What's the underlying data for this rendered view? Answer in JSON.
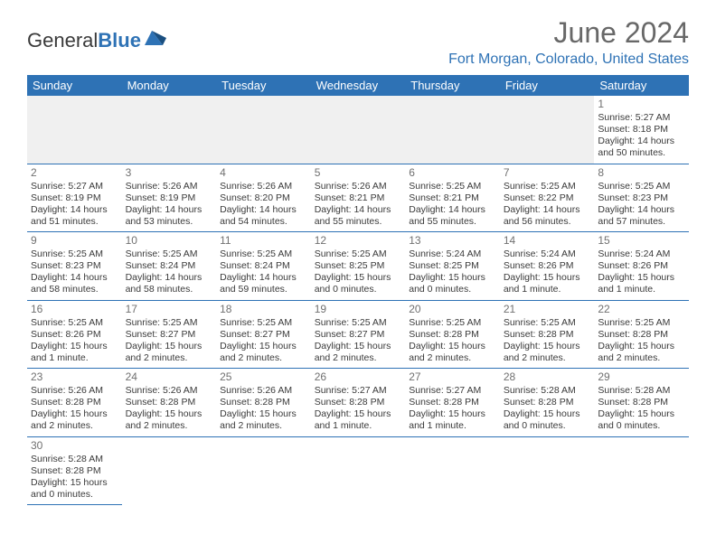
{
  "logo": {
    "text1": "General",
    "text2": "Blue"
  },
  "title": "June 2024",
  "location": "Fort Morgan, Colorado, United States",
  "colors": {
    "accent": "#2e72b5",
    "header_text": "#686868",
    "body_text": "#3a3a3a",
    "bg_empty": "#f0f0f0"
  },
  "day_headers": [
    "Sunday",
    "Monday",
    "Tuesday",
    "Wednesday",
    "Thursday",
    "Friday",
    "Saturday"
  ],
  "weeks": [
    [
      null,
      null,
      null,
      null,
      null,
      null,
      {
        "n": "1",
        "sr": "Sunrise: 5:27 AM",
        "ss": "Sunset: 8:18 PM",
        "dl1": "Daylight: 14 hours",
        "dl2": "and 50 minutes."
      }
    ],
    [
      {
        "n": "2",
        "sr": "Sunrise: 5:27 AM",
        "ss": "Sunset: 8:19 PM",
        "dl1": "Daylight: 14 hours",
        "dl2": "and 51 minutes."
      },
      {
        "n": "3",
        "sr": "Sunrise: 5:26 AM",
        "ss": "Sunset: 8:19 PM",
        "dl1": "Daylight: 14 hours",
        "dl2": "and 53 minutes."
      },
      {
        "n": "4",
        "sr": "Sunrise: 5:26 AM",
        "ss": "Sunset: 8:20 PM",
        "dl1": "Daylight: 14 hours",
        "dl2": "and 54 minutes."
      },
      {
        "n": "5",
        "sr": "Sunrise: 5:26 AM",
        "ss": "Sunset: 8:21 PM",
        "dl1": "Daylight: 14 hours",
        "dl2": "and 55 minutes."
      },
      {
        "n": "6",
        "sr": "Sunrise: 5:25 AM",
        "ss": "Sunset: 8:21 PM",
        "dl1": "Daylight: 14 hours",
        "dl2": "and 55 minutes."
      },
      {
        "n": "7",
        "sr": "Sunrise: 5:25 AM",
        "ss": "Sunset: 8:22 PM",
        "dl1": "Daylight: 14 hours",
        "dl2": "and 56 minutes."
      },
      {
        "n": "8",
        "sr": "Sunrise: 5:25 AM",
        "ss": "Sunset: 8:23 PM",
        "dl1": "Daylight: 14 hours",
        "dl2": "and 57 minutes."
      }
    ],
    [
      {
        "n": "9",
        "sr": "Sunrise: 5:25 AM",
        "ss": "Sunset: 8:23 PM",
        "dl1": "Daylight: 14 hours",
        "dl2": "and 58 minutes."
      },
      {
        "n": "10",
        "sr": "Sunrise: 5:25 AM",
        "ss": "Sunset: 8:24 PM",
        "dl1": "Daylight: 14 hours",
        "dl2": "and 58 minutes."
      },
      {
        "n": "11",
        "sr": "Sunrise: 5:25 AM",
        "ss": "Sunset: 8:24 PM",
        "dl1": "Daylight: 14 hours",
        "dl2": "and 59 minutes."
      },
      {
        "n": "12",
        "sr": "Sunrise: 5:25 AM",
        "ss": "Sunset: 8:25 PM",
        "dl1": "Daylight: 15 hours",
        "dl2": "and 0 minutes."
      },
      {
        "n": "13",
        "sr": "Sunrise: 5:24 AM",
        "ss": "Sunset: 8:25 PM",
        "dl1": "Daylight: 15 hours",
        "dl2": "and 0 minutes."
      },
      {
        "n": "14",
        "sr": "Sunrise: 5:24 AM",
        "ss": "Sunset: 8:26 PM",
        "dl1": "Daylight: 15 hours",
        "dl2": "and 1 minute."
      },
      {
        "n": "15",
        "sr": "Sunrise: 5:24 AM",
        "ss": "Sunset: 8:26 PM",
        "dl1": "Daylight: 15 hours",
        "dl2": "and 1 minute."
      }
    ],
    [
      {
        "n": "16",
        "sr": "Sunrise: 5:25 AM",
        "ss": "Sunset: 8:26 PM",
        "dl1": "Daylight: 15 hours",
        "dl2": "and 1 minute."
      },
      {
        "n": "17",
        "sr": "Sunrise: 5:25 AM",
        "ss": "Sunset: 8:27 PM",
        "dl1": "Daylight: 15 hours",
        "dl2": "and 2 minutes."
      },
      {
        "n": "18",
        "sr": "Sunrise: 5:25 AM",
        "ss": "Sunset: 8:27 PM",
        "dl1": "Daylight: 15 hours",
        "dl2": "and 2 minutes."
      },
      {
        "n": "19",
        "sr": "Sunrise: 5:25 AM",
        "ss": "Sunset: 8:27 PM",
        "dl1": "Daylight: 15 hours",
        "dl2": "and 2 minutes."
      },
      {
        "n": "20",
        "sr": "Sunrise: 5:25 AM",
        "ss": "Sunset: 8:28 PM",
        "dl1": "Daylight: 15 hours",
        "dl2": "and 2 minutes."
      },
      {
        "n": "21",
        "sr": "Sunrise: 5:25 AM",
        "ss": "Sunset: 8:28 PM",
        "dl1": "Daylight: 15 hours",
        "dl2": "and 2 minutes."
      },
      {
        "n": "22",
        "sr": "Sunrise: 5:25 AM",
        "ss": "Sunset: 8:28 PM",
        "dl1": "Daylight: 15 hours",
        "dl2": "and 2 minutes."
      }
    ],
    [
      {
        "n": "23",
        "sr": "Sunrise: 5:26 AM",
        "ss": "Sunset: 8:28 PM",
        "dl1": "Daylight: 15 hours",
        "dl2": "and 2 minutes."
      },
      {
        "n": "24",
        "sr": "Sunrise: 5:26 AM",
        "ss": "Sunset: 8:28 PM",
        "dl1": "Daylight: 15 hours",
        "dl2": "and 2 minutes."
      },
      {
        "n": "25",
        "sr": "Sunrise: 5:26 AM",
        "ss": "Sunset: 8:28 PM",
        "dl1": "Daylight: 15 hours",
        "dl2": "and 2 minutes."
      },
      {
        "n": "26",
        "sr": "Sunrise: 5:27 AM",
        "ss": "Sunset: 8:28 PM",
        "dl1": "Daylight: 15 hours",
        "dl2": "and 1 minute."
      },
      {
        "n": "27",
        "sr": "Sunrise: 5:27 AM",
        "ss": "Sunset: 8:28 PM",
        "dl1": "Daylight: 15 hours",
        "dl2": "and 1 minute."
      },
      {
        "n": "28",
        "sr": "Sunrise: 5:28 AM",
        "ss": "Sunset: 8:28 PM",
        "dl1": "Daylight: 15 hours",
        "dl2": "and 0 minutes."
      },
      {
        "n": "29",
        "sr": "Sunrise: 5:28 AM",
        "ss": "Sunset: 8:28 PM",
        "dl1": "Daylight: 15 hours",
        "dl2": "and 0 minutes."
      }
    ],
    [
      {
        "n": "30",
        "sr": "Sunrise: 5:28 AM",
        "ss": "Sunset: 8:28 PM",
        "dl1": "Daylight: 15 hours",
        "dl2": "and 0 minutes."
      },
      null,
      null,
      null,
      null,
      null,
      null
    ]
  ]
}
